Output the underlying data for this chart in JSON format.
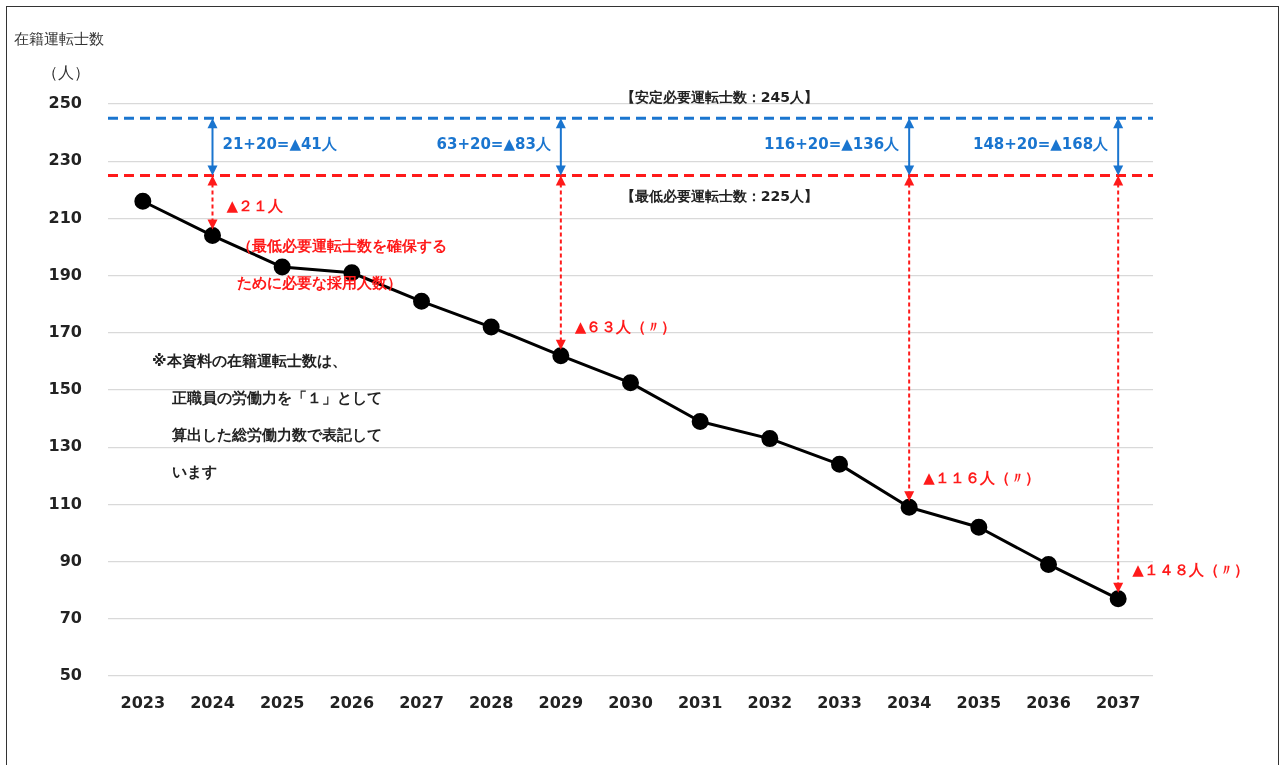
{
  "chart_data": {
    "type": "line",
    "title": "在籍運転士数",
    "ylabel": "（人）",
    "x": [
      2023,
      2024,
      2025,
      2026,
      2027,
      2028,
      2029,
      2030,
      2031,
      2032,
      2033,
      2034,
      2035,
      2036,
      2037
    ],
    "xlim": [
      2022.5,
      2037.5
    ],
    "xticks": [
      2023,
      2024,
      2025,
      2026,
      2027,
      2028,
      2029,
      2030,
      2031,
      2032,
      2033,
      2034,
      2035,
      2036,
      2037
    ],
    "series": [
      {
        "color": "#000000",
        "values": [
          216,
          204,
          193,
          191,
          181,
          172,
          162,
          152.5,
          139,
          133,
          124,
          109,
          102,
          89,
          77
        ]
      }
    ],
    "ylim": [
      50,
      250
    ],
    "yticks": [
      50,
      70,
      90,
      110,
      130,
      150,
      170,
      190,
      210,
      230,
      250
    ],
    "grid": "y",
    "marker": "circle",
    "line_style": "solid",
    "ref_lines": [
      {
        "axis": "y",
        "value": 245,
        "label": "【安定必要運転士数：245人】",
        "color": "#1a75cf",
        "line_style": "dashed"
      },
      {
        "axis": "y",
        "value": 225,
        "label": "【最低必要運転士数：225人】",
        "color": "#ff1a1a",
        "line_style": "dashed"
      }
    ],
    "annotations": [
      {
        "text": "▲２１人",
        "x": 2024,
        "y": 204
      },
      {
        "text": "▲６３人（〃）",
        "x": 2029,
        "y": 162
      },
      {
        "text": "▲１１６人（〃）",
        "x": 2034,
        "y": 109
      },
      {
        "text": "▲１４８人（〃）",
        "x": 2037,
        "y": 77
      },
      "21+20=▲41人",
      "63+20=▲83人",
      "116+20=▲136人",
      "148+20=▲168人",
      "（最低必要運転士数を確保するために必要な採用人数）",
      "※本資料の在籍運転士数は、",
      "正職員の労働力を「１」として",
      "算出した総労働力数で表記して",
      "います"
    ]
  }
}
